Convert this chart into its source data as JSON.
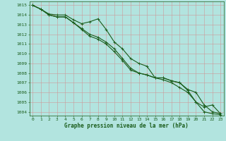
{
  "title": "Graphe pression niveau de la mer (hPa)",
  "background_color": "#b2e4df",
  "grid_color": "#cc9999",
  "line_color": "#1a5c1a",
  "marker_color": "#1a5c1a",
  "x_ticks": [
    0,
    1,
    2,
    3,
    4,
    5,
    6,
    7,
    8,
    9,
    10,
    11,
    12,
    13,
    14,
    15,
    16,
    17,
    18,
    19,
    20,
    21,
    22,
    23
  ],
  "y_ticks": [
    1004,
    1005,
    1006,
    1007,
    1008,
    1009,
    1010,
    1011,
    1012,
    1013,
    1014,
    1015
  ],
  "ylim": [
    1003.6,
    1015.4
  ],
  "xlim": [
    -0.4,
    23.4
  ],
  "series": [
    [
      1015.0,
      1014.6,
      1014.1,
      1014.0,
      1014.0,
      1013.5,
      1013.1,
      1013.3,
      1013.6,
      1012.5,
      1011.2,
      1010.5,
      1009.5,
      1009.0,
      1008.7,
      1007.5,
      1007.5,
      1007.2,
      1007.0,
      1006.3,
      1006.0,
      1004.7,
      1004.0,
      1003.8
    ],
    [
      1015.0,
      1014.6,
      1014.0,
      1013.8,
      1013.8,
      1013.2,
      1012.6,
      1012.0,
      1011.7,
      1011.2,
      1010.5,
      1009.5,
      1008.5,
      1008.0,
      1007.8,
      1007.5,
      1007.5,
      1007.2,
      1007.0,
      1006.2,
      1005.0,
      1004.0,
      1003.8,
      1003.7
    ],
    [
      1015.0,
      1014.6,
      1014.0,
      1013.8,
      1013.8,
      1013.2,
      1012.5,
      1011.8,
      1011.5,
      1011.0,
      1010.2,
      1009.3,
      1008.3,
      1008.0,
      1007.8,
      1007.5,
      1007.3,
      1007.0,
      1006.5,
      1006.0,
      1005.0,
      1004.5,
      1004.7,
      1003.8
    ]
  ],
  "title_fontsize": 5.5,
  "tick_fontsize": 4.5,
  "linewidth": 0.8,
  "markersize": 2.5,
  "markeredgewidth": 0.6
}
